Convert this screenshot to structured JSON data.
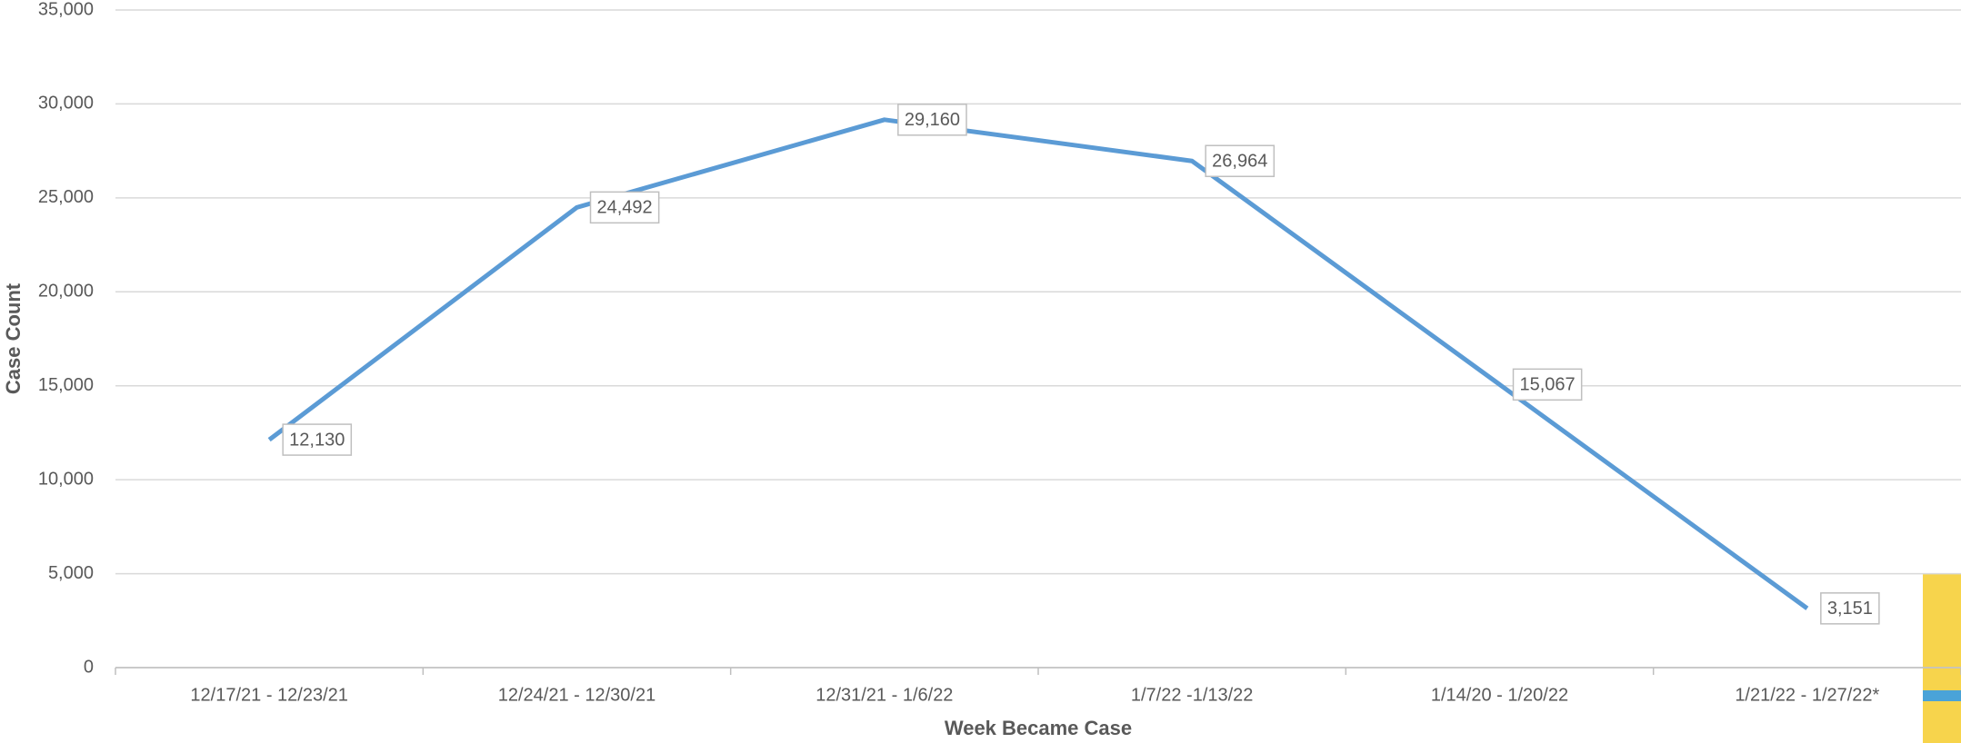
{
  "chart_data": {
    "type": "line",
    "x_label": "Week Became Case",
    "y_label": "Case Count",
    "categories": [
      "12/17/21 - 12/23/21",
      "12/24/21 - 12/30/21",
      "12/31/21 - 1/6/22",
      "1/7/22 -1/13/22",
      "1/14/20 - 1/20/22",
      "1/21/22 - 1/27/22*"
    ],
    "series": [
      {
        "name": "Case Count",
        "color": "#5b9bd5",
        "values": [
          12130,
          24492,
          29160,
          26964,
          15067,
          3151
        ],
        "value_labels": [
          "12,130",
          "24,492",
          "29,160",
          "26,964",
          "15,067",
          "3,151"
        ]
      }
    ],
    "ylim": [
      0,
      35000
    ],
    "yticks": [
      0,
      {
        "value": 5000,
        "label": "5,000"
      },
      {
        "value": 10000,
        "label": "10,000"
      },
      {
        "value": 15000,
        "label": "15,000"
      },
      {
        "value": 20000,
        "label": "20,000"
      },
      {
        "value": 25000,
        "label": "25,000"
      },
      {
        "value": 30000,
        "label": "30,000"
      },
      {
        "value": 35000,
        "label": "35,000"
      }
    ],
    "grid": true
  }
}
